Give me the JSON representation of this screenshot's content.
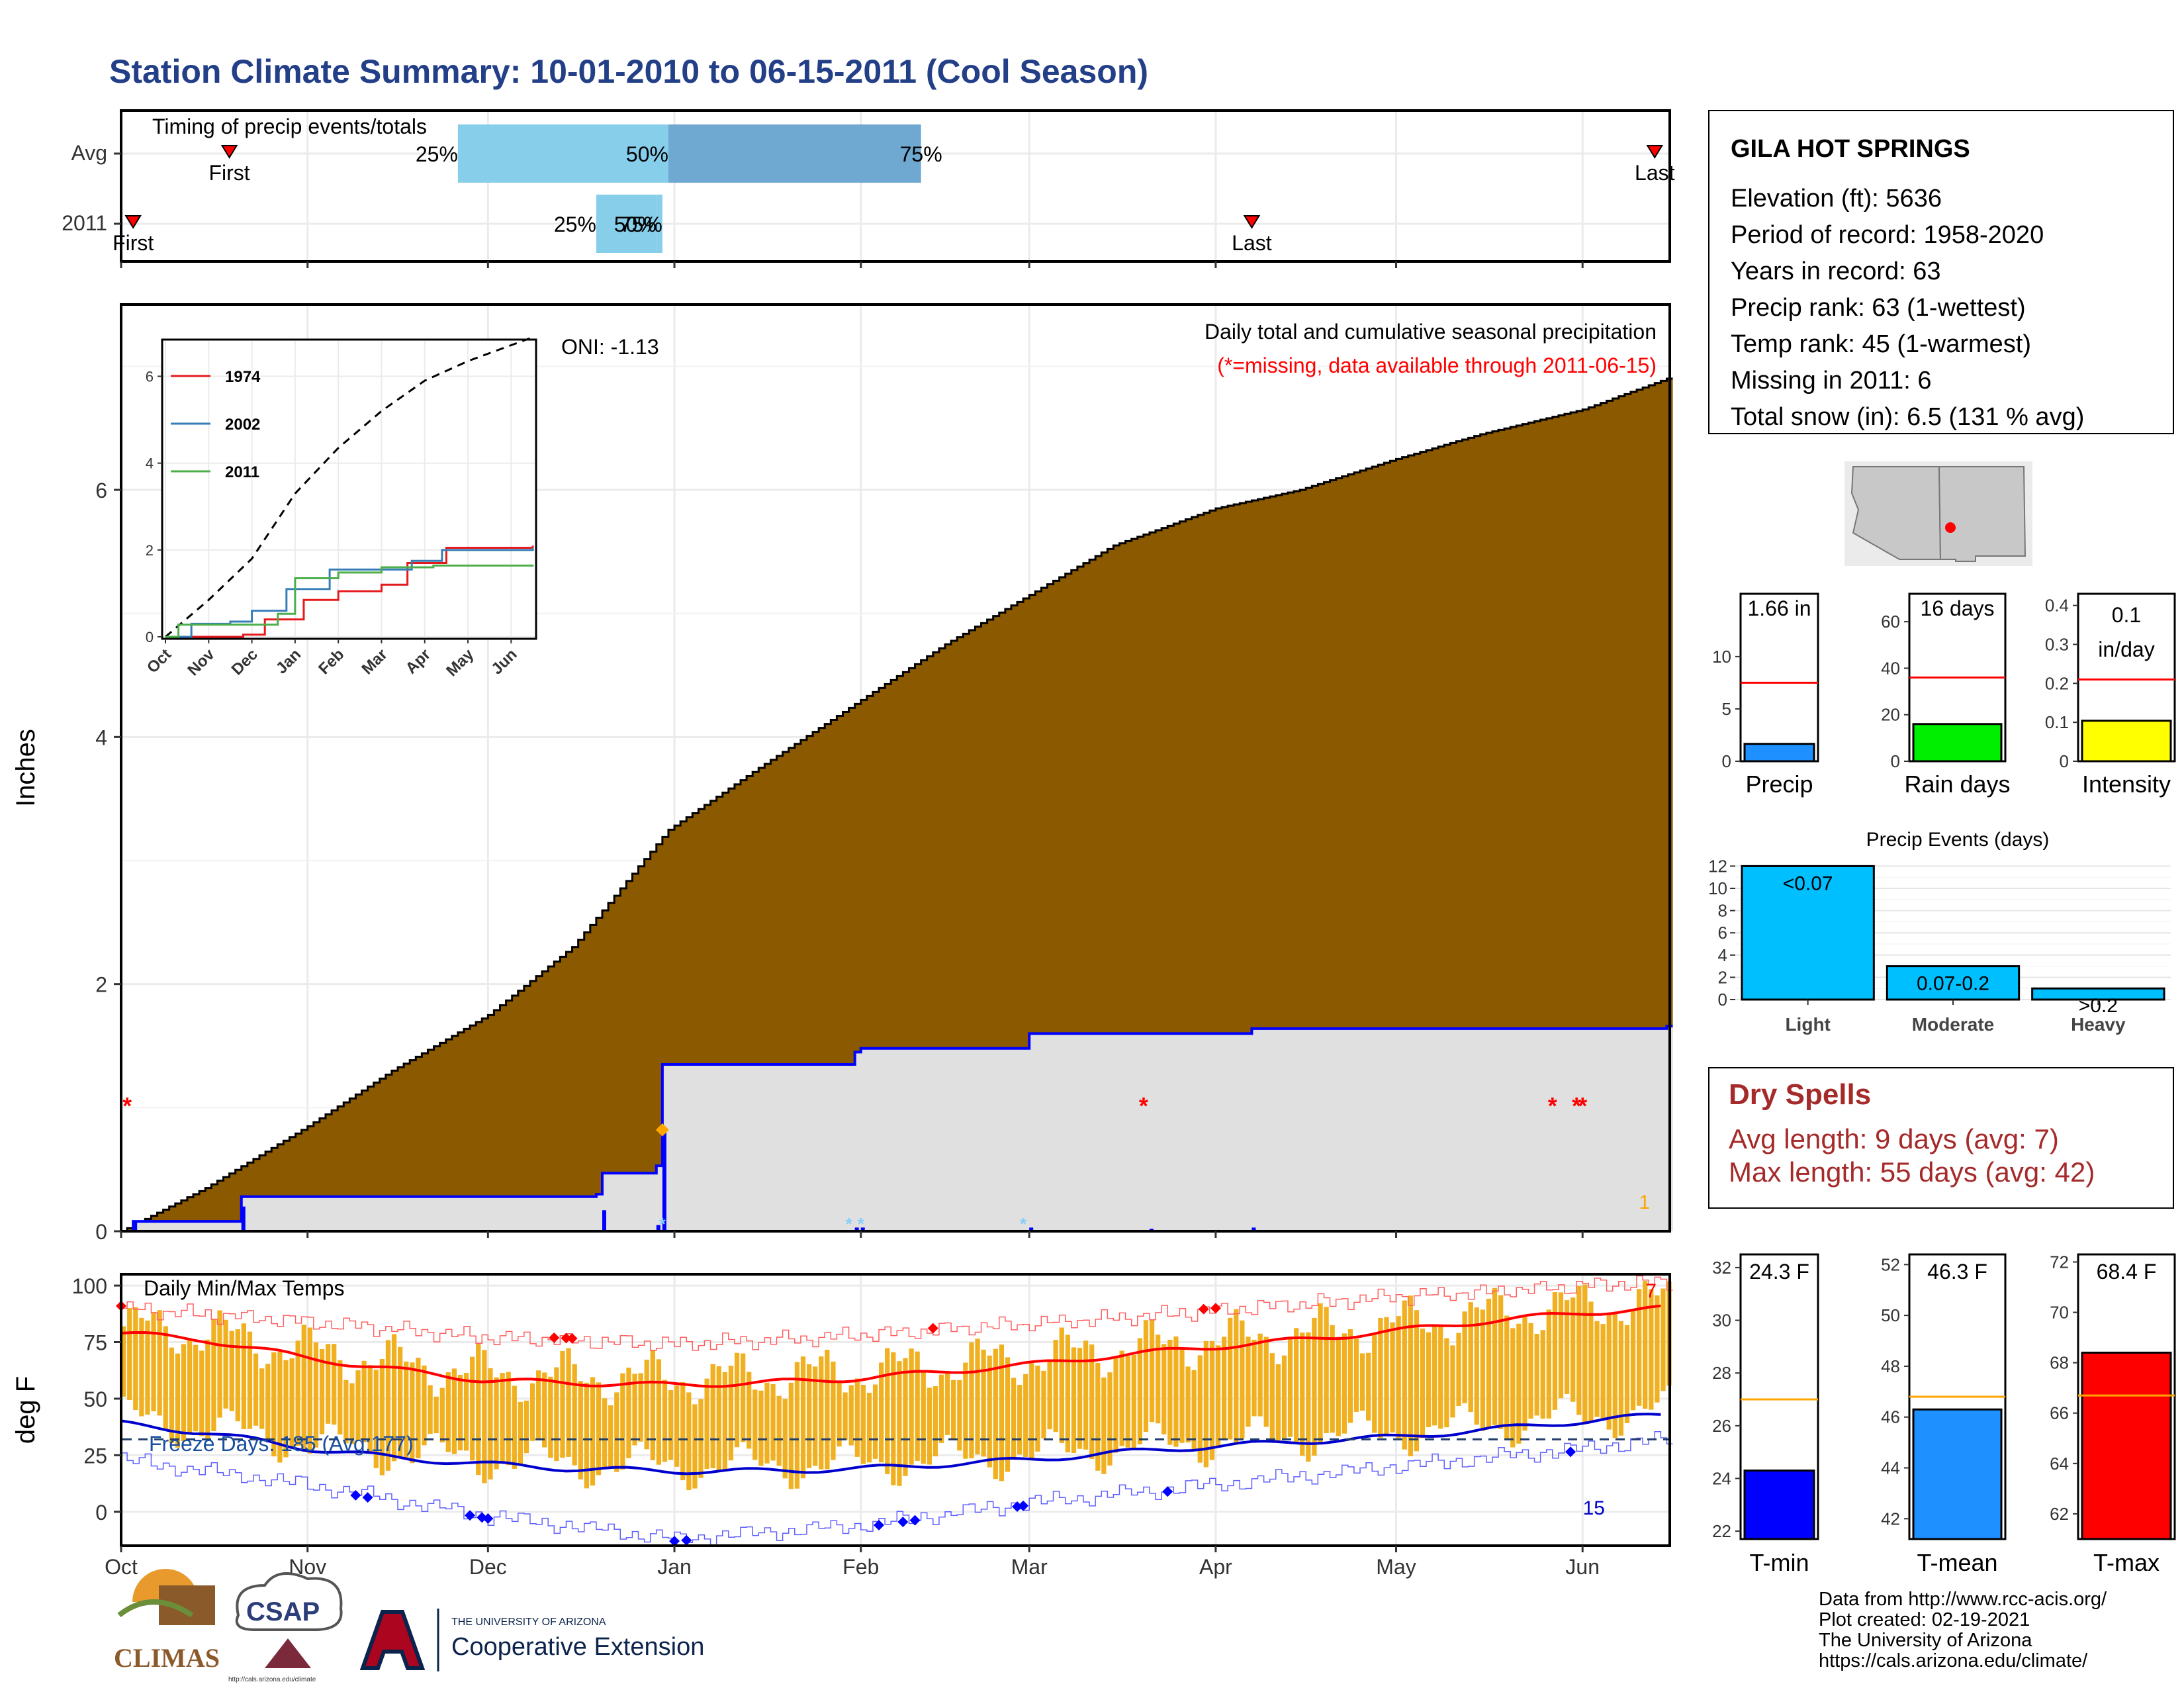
{
  "title": "Station Climate Summary: 10-01-2010 to 06-15-2011 (Cool Season)",
  "timing": {
    "label": "Timing of precip events/totals",
    "rows": [
      "Avg",
      "2011"
    ],
    "avg": {
      "first_label": "First",
      "last_label": "Last",
      "first": "2010-10-19",
      "last": "2011-06-13",
      "p25": "2010-11-26",
      "p50": "2010-12-31",
      "p75": "2011-02-11",
      "p25_label": "25%",
      "p50_label": "50%",
      "p75_label": "75%"
    },
    "y2011": {
      "first_label": "First",
      "last_label": "Last",
      "first": "2010-10-03",
      "last": "2011-04-07",
      "p25": "2010-12-19",
      "p50": "2010-12-29",
      "p75": "2010-12-30",
      "p25_label": "25%",
      "p50_label": "50%",
      "p75_label": "75%"
    }
  },
  "precip_panel": {
    "ylabel": "Inches",
    "yticks": [
      0,
      2,
      4,
      6
    ],
    "ylim": [
      0,
      7.5
    ],
    "oni_label": "ONI: -1.13",
    "caption": "Daily total and cumulative seasonal precipitation",
    "missing_note": "(*=missing, data available through 2011-06-15)",
    "count_label": "1",
    "avg_cumulative": [
      [
        "2010-10-01",
        0.0
      ],
      [
        "2010-10-15",
        0.35
      ],
      [
        "2010-11-01",
        0.85
      ],
      [
        "2010-11-15",
        1.3
      ],
      [
        "2010-12-01",
        1.75
      ],
      [
        "2010-12-15",
        2.3
      ],
      [
        "2010-12-31",
        3.25
      ],
      [
        "2011-01-15",
        3.75
      ],
      [
        "2011-02-01",
        4.3
      ],
      [
        "2011-02-15",
        4.75
      ],
      [
        "2011-03-01",
        5.15
      ],
      [
        "2011-03-15",
        5.55
      ],
      [
        "2011-04-01",
        5.85
      ],
      [
        "2011-04-15",
        6.0
      ],
      [
        "2011-05-01",
        6.25
      ],
      [
        "2011-05-15",
        6.45
      ],
      [
        "2011-06-01",
        6.65
      ],
      [
        "2011-06-15",
        6.9
      ]
    ],
    "cumulative_2011": [
      [
        "2010-10-01",
        0.0
      ],
      [
        "2010-10-03",
        0.08
      ],
      [
        "2010-10-21",
        0.28
      ],
      [
        "2010-12-19",
        0.3
      ],
      [
        "2010-12-20",
        0.47
      ],
      [
        "2010-12-29",
        0.53
      ],
      [
        "2010-12-30",
        1.35
      ],
      [
        "2011-01-31",
        1.45
      ],
      [
        "2011-02-01",
        1.48
      ],
      [
        "2011-03-01",
        1.6
      ],
      [
        "2011-03-21",
        1.6
      ],
      [
        "2011-04-07",
        1.64
      ],
      [
        "2011-06-15",
        1.66
      ]
    ],
    "daily_bars": [
      [
        "2010-10-03",
        0.08
      ],
      [
        "2010-10-21",
        0.2
      ],
      [
        "2010-12-20",
        0.17
      ],
      [
        "2010-12-29",
        0.05
      ],
      [
        "2010-12-30",
        0.82
      ],
      [
        "2011-01-31",
        0.03
      ],
      [
        "2011-02-01",
        0.03
      ],
      [
        "2011-03-01",
        0.03
      ],
      [
        "2011-03-21",
        0.02
      ],
      [
        "2011-04-07",
        0.03
      ]
    ],
    "missing_dates": [
      "2010-10-02",
      "2011-03-20",
      "2011-05-27",
      "2011-05-31",
      "2011-06-01"
    ],
    "snow_dates": [
      "2010-12-30",
      "2011-01-30",
      "2011-02-01",
      "2011-02-28"
    ],
    "orange_marker": [
      "2010-12-30",
      0.82
    ]
  },
  "inset": {
    "yticks": [
      0,
      2,
      4,
      6
    ],
    "months": [
      "Oct",
      "Nov",
      "Dec",
      "Jan",
      "Feb",
      "Mar",
      "Apr",
      "May",
      "Jun"
    ],
    "series": [
      {
        "name": "1974",
        "color": "#e41a1c",
        "points": [
          [
            0,
            0
          ],
          [
            1.8,
            0.05
          ],
          [
            2.3,
            0.4
          ],
          [
            3.2,
            0.85
          ],
          [
            4.0,
            1.05
          ],
          [
            5.0,
            1.2
          ],
          [
            5.6,
            1.7
          ],
          [
            6.5,
            2.05
          ],
          [
            8.5,
            2.1
          ]
        ]
      },
      {
        "name": "2002",
        "color": "#377eb8",
        "points": [
          [
            0,
            0
          ],
          [
            0.6,
            0.3
          ],
          [
            1.5,
            0.35
          ],
          [
            2.0,
            0.6
          ],
          [
            2.8,
            1.1
          ],
          [
            3.8,
            1.55
          ],
          [
            5.7,
            1.75
          ],
          [
            6.4,
            2.0
          ],
          [
            8.5,
            2.05
          ]
        ]
      },
      {
        "name": "2011",
        "color": "#4daf4a",
        "points": [
          [
            0,
            0
          ],
          [
            0.3,
            0.28
          ],
          [
            2.6,
            0.53
          ],
          [
            3.0,
            1.35
          ],
          [
            4.0,
            1.48
          ],
          [
            5.0,
            1.6
          ],
          [
            6.2,
            1.64
          ],
          [
            8.5,
            1.66
          ]
        ]
      }
    ],
    "avg_dashed": [
      [
        0,
        0
      ],
      [
        1.0,
        0.85
      ],
      [
        2.0,
        1.8
      ],
      [
        3.0,
        3.3
      ],
      [
        4.0,
        4.35
      ],
      [
        5.0,
        5.2
      ],
      [
        6.0,
        5.9
      ],
      [
        7.0,
        6.35
      ],
      [
        8.5,
        6.9
      ]
    ]
  },
  "temp_panel": {
    "ylabel": "deg F",
    "caption": "Daily Min/Max Temps",
    "freeze_label": "Freeze Days: 185 (Avg:177)",
    "yticks": [
      0,
      25,
      50,
      75,
      100
    ],
    "ylim": [
      -15,
      105
    ],
    "freeze_line": 32,
    "hot_count": "7",
    "cold_count": "15",
    "avg_max": [
      [
        "2010-10-01",
        79
      ],
      [
        "2010-10-15",
        76
      ],
      [
        "2010-11-01",
        68
      ],
      [
        "2010-11-15",
        63
      ],
      [
        "2010-12-01",
        58
      ],
      [
        "2010-12-15",
        57
      ],
      [
        "2011-01-01",
        56
      ],
      [
        "2011-01-15",
        57
      ],
      [
        "2011-02-01",
        59
      ],
      [
        "2011-02-15",
        62
      ],
      [
        "2011-03-01",
        65
      ],
      [
        "2011-03-15",
        69
      ],
      [
        "2011-04-01",
        73
      ],
      [
        "2011-04-15",
        76
      ],
      [
        "2011-05-01",
        80
      ],
      [
        "2011-05-15",
        84
      ],
      [
        "2011-06-01",
        88
      ],
      [
        "2011-06-15",
        90
      ]
    ],
    "avg_min": [
      [
        "2010-10-01",
        39
      ],
      [
        "2010-10-15",
        35
      ],
      [
        "2010-11-01",
        28
      ],
      [
        "2010-11-15",
        24
      ],
      [
        "2010-12-01",
        21
      ],
      [
        "2010-12-15",
        19
      ],
      [
        "2011-01-01",
        18
      ],
      [
        "2011-01-15",
        18
      ],
      [
        "2011-02-01",
        19
      ],
      [
        "2011-02-15",
        21
      ],
      [
        "2011-03-01",
        23
      ],
      [
        "2011-03-15",
        26
      ],
      [
        "2011-04-01",
        29
      ],
      [
        "2011-04-15",
        31
      ],
      [
        "2011-05-01",
        33
      ],
      [
        "2011-05-15",
        36
      ],
      [
        "2011-06-01",
        40
      ],
      [
        "2011-06-15",
        43
      ]
    ],
    "record_max": [
      [
        "2010-10-01",
        90
      ],
      [
        "2010-11-01",
        84
      ],
      [
        "2010-12-01",
        77
      ],
      [
        "2011-01-01",
        74
      ],
      [
        "2011-02-01",
        78
      ],
      [
        "2011-03-01",
        83
      ],
      [
        "2011-04-01",
        89
      ],
      [
        "2011-05-01",
        95
      ],
      [
        "2011-06-01",
        100
      ],
      [
        "2011-06-15",
        102
      ]
    ],
    "record_min": [
      [
        "2010-10-01",
        23
      ],
      [
        "2010-11-01",
        12
      ],
      [
        "2010-12-01",
        -2
      ],
      [
        "2011-01-01",
        -12
      ],
      [
        "2011-02-01",
        -6
      ],
      [
        "2011-03-01",
        4
      ],
      [
        "2011-04-01",
        12
      ],
      [
        "2011-05-01",
        20
      ],
      [
        "2011-06-01",
        28
      ],
      [
        "2011-06-15",
        32
      ]
    ],
    "record_high_dates": [
      "2010-10-01",
      "2010-12-12",
      "2010-12-14",
      "2010-12-15",
      "2011-02-13",
      "2011-03-30",
      "2011-04-01"
    ],
    "record_low_dates": [
      "2010-11-09",
      "2010-11-11",
      "2010-11-28",
      "2010-11-30",
      "2010-12-01",
      "2011-01-01",
      "2011-01-03",
      "2011-02-04",
      "2011-02-08",
      "2011-02-10",
      "2011-02-27",
      "2011-02-28",
      "2011-03-24",
      "2011-05-30"
    ]
  },
  "x_months": [
    {
      "label": "Oct",
      "date": "2010-10-01"
    },
    {
      "label": "Nov",
      "date": "2010-11-01"
    },
    {
      "label": "Dec",
      "date": "2010-12-01"
    },
    {
      "label": "Jan",
      "date": "2011-01-01"
    },
    {
      "label": "Feb",
      "date": "2011-02-01"
    },
    {
      "label": "Mar",
      "date": "2011-03-01"
    },
    {
      "label": "Apr",
      "date": "2011-04-01"
    },
    {
      "label": "May",
      "date": "2011-05-01"
    },
    {
      "label": "Jun",
      "date": "2011-06-01"
    }
  ],
  "station": {
    "name": "GILA HOT SPRINGS",
    "lines": [
      "Elevation (ft): 5636",
      "Period of record: 1958-2020",
      "Years in record: 63",
      "Precip rank: 63 (1-wettest)",
      "Temp rank: 45 (1-warmest)",
      "Missing in 2011: 6",
      "Total snow (in): 6.5 (131 % avg)"
    ]
  },
  "stats_bars": [
    {
      "name": "precip",
      "label": "Precip",
      "value_label": "1.66 in",
      "value": 1.66,
      "avg": 7.5,
      "ymax": 16,
      "yticks": [
        0,
        5,
        10
      ],
      "color": "#1e90ff"
    },
    {
      "name": "rain-days",
      "label": "Rain days",
      "value_label": "16 days",
      "value": 16,
      "avg": 36,
      "ymax": 72,
      "yticks": [
        0,
        20,
        40,
        60
      ],
      "color": "#00ee00"
    },
    {
      "name": "intensity",
      "label": "Intensity",
      "value_label": "0.1 in/day",
      "value": 0.104,
      "avg": 0.21,
      "ymax": 0.43,
      "yticks": [
        0.0,
        0.1,
        0.2,
        0.3,
        0.4
      ],
      "color": "#ffff00"
    }
  ],
  "precip_events": {
    "title": "Precip Events (days)",
    "yticks": [
      0,
      2,
      4,
      6,
      8,
      10,
      12
    ],
    "ymax": 12.5,
    "categories": [
      "Light",
      "Moderate",
      "Heavy"
    ],
    "values": [
      12,
      3,
      1
    ],
    "bar_labels": [
      "<0.07",
      "0.07-0.2",
      ">0.2"
    ],
    "color": "#00bfff"
  },
  "dry_spells": {
    "title": "Dry Spells",
    "avg_line": "Avg length: 9 days (avg: 7)",
    "max_line": "Max length: 55 days (avg: 42)"
  },
  "temp_bars": [
    {
      "name": "tmin",
      "label": "T-min",
      "value_label": "24.3 F",
      "value": 24.3,
      "avg": 27.0,
      "ymin": 21.7,
      "ymax": 32.5,
      "yticks": [
        22,
        24,
        26,
        28,
        30,
        32
      ],
      "color": "#0000ff"
    },
    {
      "name": "tmean",
      "label": "T-mean",
      "value_label": "46.3 F",
      "value": 46.3,
      "avg": 46.8,
      "ymin": 41.2,
      "ymax": 52.4,
      "yticks": [
        42,
        44,
        46,
        48,
        50,
        52
      ],
      "color": "#1e90ff"
    },
    {
      "name": "tmax",
      "label": "T-max",
      "value_label": "68.4 F",
      "value": 68.4,
      "avg": 66.7,
      "ymin": 61.0,
      "ymax": 72.3,
      "yticks": [
        62,
        64,
        66,
        68,
        70,
        72
      ],
      "color": "#ff0000"
    }
  ],
  "footer": {
    "lines": [
      "Data from http://www.rcc-acis.org/",
      "Plot created: 02-19-2021",
      "The University of Arizona",
      "https://cals.arizona.edu/climate/"
    ],
    "logos": {
      "climas": "CLIMAS",
      "csap": "CSAP",
      "csap_url": "http://cals.arizona.edu/climate",
      "ua_small": "THE UNIVERSITY OF ARIZONA",
      "ua_big": "Cooperative Extension"
    }
  },
  "colors": {
    "title": "#233f87",
    "cumulative_fill": "#8b5a00",
    "season_fill": "#e0e0e0",
    "season_line": "#0000ff",
    "temp_bar": "#f0b020",
    "missing": "#ff0000",
    "dry_spells": "#a52a2a"
  }
}
